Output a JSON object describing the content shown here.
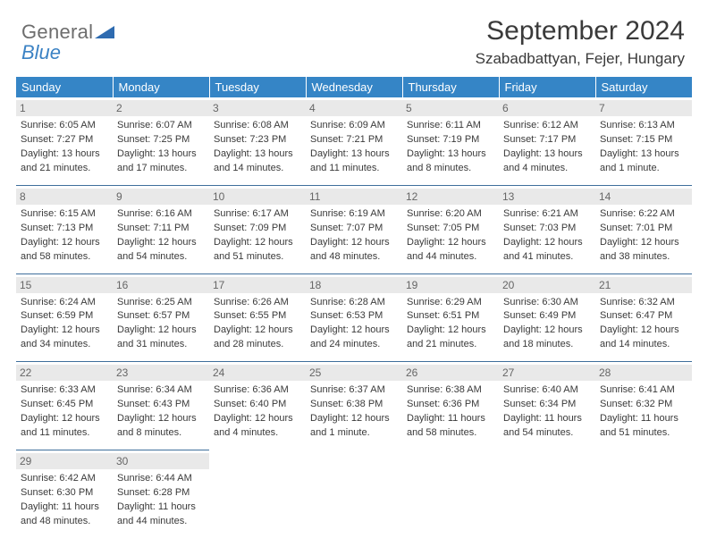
{
  "logo": {
    "word1": "General",
    "word2": "Blue"
  },
  "title": "September 2024",
  "location": "Szabadbattyan, Fejer, Hungary",
  "header_bg": "#3585c6",
  "divider_color": "#3f6f9c",
  "daybar_bg": "#e9e9e9",
  "weekdays": [
    "Sunday",
    "Monday",
    "Tuesday",
    "Wednesday",
    "Thursday",
    "Friday",
    "Saturday"
  ],
  "weeks": [
    [
      {
        "n": "1",
        "sr": "Sunrise: 6:05 AM",
        "ss": "Sunset: 7:27 PM",
        "dl": "Daylight: 13 hours and 21 minutes."
      },
      {
        "n": "2",
        "sr": "Sunrise: 6:07 AM",
        "ss": "Sunset: 7:25 PM",
        "dl": "Daylight: 13 hours and 17 minutes."
      },
      {
        "n": "3",
        "sr": "Sunrise: 6:08 AM",
        "ss": "Sunset: 7:23 PM",
        "dl": "Daylight: 13 hours and 14 minutes."
      },
      {
        "n": "4",
        "sr": "Sunrise: 6:09 AM",
        "ss": "Sunset: 7:21 PM",
        "dl": "Daylight: 13 hours and 11 minutes."
      },
      {
        "n": "5",
        "sr": "Sunrise: 6:11 AM",
        "ss": "Sunset: 7:19 PM",
        "dl": "Daylight: 13 hours and 8 minutes."
      },
      {
        "n": "6",
        "sr": "Sunrise: 6:12 AM",
        "ss": "Sunset: 7:17 PM",
        "dl": "Daylight: 13 hours and 4 minutes."
      },
      {
        "n": "7",
        "sr": "Sunrise: 6:13 AM",
        "ss": "Sunset: 7:15 PM",
        "dl": "Daylight: 13 hours and 1 minute."
      }
    ],
    [
      {
        "n": "8",
        "sr": "Sunrise: 6:15 AM",
        "ss": "Sunset: 7:13 PM",
        "dl": "Daylight: 12 hours and 58 minutes."
      },
      {
        "n": "9",
        "sr": "Sunrise: 6:16 AM",
        "ss": "Sunset: 7:11 PM",
        "dl": "Daylight: 12 hours and 54 minutes."
      },
      {
        "n": "10",
        "sr": "Sunrise: 6:17 AM",
        "ss": "Sunset: 7:09 PM",
        "dl": "Daylight: 12 hours and 51 minutes."
      },
      {
        "n": "11",
        "sr": "Sunrise: 6:19 AM",
        "ss": "Sunset: 7:07 PM",
        "dl": "Daylight: 12 hours and 48 minutes."
      },
      {
        "n": "12",
        "sr": "Sunrise: 6:20 AM",
        "ss": "Sunset: 7:05 PM",
        "dl": "Daylight: 12 hours and 44 minutes."
      },
      {
        "n": "13",
        "sr": "Sunrise: 6:21 AM",
        "ss": "Sunset: 7:03 PM",
        "dl": "Daylight: 12 hours and 41 minutes."
      },
      {
        "n": "14",
        "sr": "Sunrise: 6:22 AM",
        "ss": "Sunset: 7:01 PM",
        "dl": "Daylight: 12 hours and 38 minutes."
      }
    ],
    [
      {
        "n": "15",
        "sr": "Sunrise: 6:24 AM",
        "ss": "Sunset: 6:59 PM",
        "dl": "Daylight: 12 hours and 34 minutes."
      },
      {
        "n": "16",
        "sr": "Sunrise: 6:25 AM",
        "ss": "Sunset: 6:57 PM",
        "dl": "Daylight: 12 hours and 31 minutes."
      },
      {
        "n": "17",
        "sr": "Sunrise: 6:26 AM",
        "ss": "Sunset: 6:55 PM",
        "dl": "Daylight: 12 hours and 28 minutes."
      },
      {
        "n": "18",
        "sr": "Sunrise: 6:28 AM",
        "ss": "Sunset: 6:53 PM",
        "dl": "Daylight: 12 hours and 24 minutes."
      },
      {
        "n": "19",
        "sr": "Sunrise: 6:29 AM",
        "ss": "Sunset: 6:51 PM",
        "dl": "Daylight: 12 hours and 21 minutes."
      },
      {
        "n": "20",
        "sr": "Sunrise: 6:30 AM",
        "ss": "Sunset: 6:49 PM",
        "dl": "Daylight: 12 hours and 18 minutes."
      },
      {
        "n": "21",
        "sr": "Sunrise: 6:32 AM",
        "ss": "Sunset: 6:47 PM",
        "dl": "Daylight: 12 hours and 14 minutes."
      }
    ],
    [
      {
        "n": "22",
        "sr": "Sunrise: 6:33 AM",
        "ss": "Sunset: 6:45 PM",
        "dl": "Daylight: 12 hours and 11 minutes."
      },
      {
        "n": "23",
        "sr": "Sunrise: 6:34 AM",
        "ss": "Sunset: 6:43 PM",
        "dl": "Daylight: 12 hours and 8 minutes."
      },
      {
        "n": "24",
        "sr": "Sunrise: 6:36 AM",
        "ss": "Sunset: 6:40 PM",
        "dl": "Daylight: 12 hours and 4 minutes."
      },
      {
        "n": "25",
        "sr": "Sunrise: 6:37 AM",
        "ss": "Sunset: 6:38 PM",
        "dl": "Daylight: 12 hours and 1 minute."
      },
      {
        "n": "26",
        "sr": "Sunrise: 6:38 AM",
        "ss": "Sunset: 6:36 PM",
        "dl": "Daylight: 11 hours and 58 minutes."
      },
      {
        "n": "27",
        "sr": "Sunrise: 6:40 AM",
        "ss": "Sunset: 6:34 PM",
        "dl": "Daylight: 11 hours and 54 minutes."
      },
      {
        "n": "28",
        "sr": "Sunrise: 6:41 AM",
        "ss": "Sunset: 6:32 PM",
        "dl": "Daylight: 11 hours and 51 minutes."
      }
    ],
    [
      {
        "n": "29",
        "sr": "Sunrise: 6:42 AM",
        "ss": "Sunset: 6:30 PM",
        "dl": "Daylight: 11 hours and 48 minutes."
      },
      {
        "n": "30",
        "sr": "Sunrise: 6:44 AM",
        "ss": "Sunset: 6:28 PM",
        "dl": "Daylight: 11 hours and 44 minutes."
      },
      null,
      null,
      null,
      null,
      null
    ]
  ]
}
